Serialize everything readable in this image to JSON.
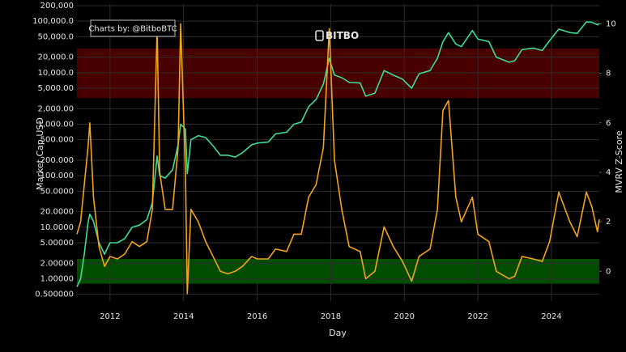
{
  "chart_data": {
    "type": "line",
    "annotation": "Charts by: @BitboBTC",
    "logo_text": "BITBO",
    "xlabel": "Day",
    "ylabel": "Market Cap USD",
    "y2label": "MVRV Z-Score",
    "log_y": true,
    "grid": true,
    "background": "#000000",
    "grid_color": "#2e2e2e",
    "xlim": [
      2011.1,
      2025.3
    ],
    "xticks": [
      2012,
      2014,
      2016,
      2018,
      2020,
      2022,
      2024
    ],
    "ylim": [
      0.37,
      215000
    ],
    "yticks": [
      {
        "value": 0.5,
        "label": "0.500000"
      },
      {
        "value": 1,
        "label": "1.00000"
      },
      {
        "value": 2,
        "label": "2.00000"
      },
      {
        "value": 5,
        "label": "5.00000"
      },
      {
        "value": 10,
        "label": "10.0000"
      },
      {
        "value": 20,
        "label": "20.0000"
      },
      {
        "value": 50,
        "label": "50.0000"
      },
      {
        "value": 100,
        "label": "100.000"
      },
      {
        "value": 200,
        "label": "200.000"
      },
      {
        "value": 500,
        "label": "500.000"
      },
      {
        "value": 1000,
        "label": "1,000.00"
      },
      {
        "value": 2000,
        "label": "2,000.00"
      },
      {
        "value": 5000,
        "label": "5,000.00"
      },
      {
        "value": 10000,
        "label": "10,000.0"
      },
      {
        "value": 20000,
        "label": "20,000.0"
      },
      {
        "value": 50000,
        "label": "50,000.0"
      },
      {
        "value": 100000,
        "label": "100,000.0"
      },
      {
        "value": 200000,
        "label": "200,000"
      }
    ],
    "y2lim": [
      -1.2,
      10.8
    ],
    "y2ticks": [
      0,
      2,
      4,
      6,
      8,
      10
    ],
    "bands": [
      {
        "axis": "y2",
        "from": 7,
        "to": 9,
        "color": "rgba(190,0,0,0.38)"
      },
      {
        "axis": "y2",
        "from": -0.5,
        "to": 0.5,
        "color": "rgba(0,170,0,0.45)"
      }
    ],
    "x": [
      2011.1,
      2011.2,
      2011.3,
      2011.4,
      2011.45,
      2011.55,
      2011.7,
      2011.85,
      2012.0,
      2012.2,
      2012.4,
      2012.6,
      2012.8,
      2013.0,
      2013.15,
      2013.28,
      2013.35,
      2013.5,
      2013.7,
      2013.85,
      2013.92,
      2014.05,
      2014.1,
      2014.2,
      2014.4,
      2014.6,
      2014.8,
      2015.0,
      2015.2,
      2015.4,
      2015.6,
      2015.85,
      2016.0,
      2016.3,
      2016.5,
      2016.8,
      2017.0,
      2017.2,
      2017.4,
      2017.6,
      2017.8,
      2017.96,
      2018.1,
      2018.3,
      2018.5,
      2018.8,
      2018.95,
      2019.2,
      2019.45,
      2019.7,
      2019.95,
      2020.2,
      2020.4,
      2020.7,
      2020.9,
      2021.05,
      2021.2,
      2021.4,
      2021.55,
      2021.85,
      2022.0,
      2022.3,
      2022.5,
      2022.85,
      2023.0,
      2023.2,
      2023.5,
      2023.75,
      2023.95,
      2024.2,
      2024.5,
      2024.7,
      2024.95,
      2025.1,
      2025.25,
      2025.3
    ],
    "series": [
      {
        "color": "#3fdc98",
        "values": [
          0.7,
          1.0,
          3,
          12,
          18,
          13,
          5,
          3,
          5,
          5,
          6,
          10,
          11,
          14,
          30,
          240,
          100,
          90,
          130,
          400,
          1000,
          800,
          110,
          500,
          600,
          550,
          380,
          250,
          250,
          230,
          280,
          400,
          430,
          450,
          650,
          700,
          1000,
          1100,
          2200,
          3000,
          6000,
          19000,
          9000,
          8000,
          6500,
          6300,
          3500,
          4000,
          11000,
          9000,
          7500,
          5000,
          9500,
          11000,
          19000,
          40000,
          60000,
          36000,
          32000,
          66000,
          45000,
          40000,
          20000,
          16000,
          17000,
          28000,
          30000,
          27000,
          42000,
          70000,
          60000,
          58000,
          97000,
          95000,
          85000,
          90000
        ]
      },
      {
        "color": "#f4a31c",
        "axis": "y2",
        "values": [
          1.5,
          2.0,
          3.5,
          5.0,
          6.0,
          3.0,
          1.0,
          0.2,
          0.6,
          0.5,
          0.7,
          1.2,
          1.0,
          1.2,
          2.5,
          9.8,
          4,
          2.5,
          2.5,
          5,
          10.0,
          4,
          -0.9,
          2.5,
          2.0,
          1.2,
          0.6,
          0.0,
          -0.1,
          0.0,
          0.2,
          0.6,
          0.5,
          0.5,
          0.9,
          0.8,
          1.5,
          1.5,
          3.0,
          3.5,
          5.0,
          9.8,
          4.5,
          2.5,
          1.0,
          0.8,
          -0.3,
          0,
          1.8,
          1.0,
          0.4,
          -0.4,
          0.6,
          0.9,
          2.5,
          6.5,
          6.9,
          3,
          2,
          3.0,
          1.5,
          1.2,
          0.0,
          -0.3,
          -0.2,
          0.6,
          0.5,
          0.4,
          1.2,
          3.2,
          2.0,
          1.4,
          3.2,
          2.6,
          1.6,
          2.1
        ]
      }
    ]
  }
}
